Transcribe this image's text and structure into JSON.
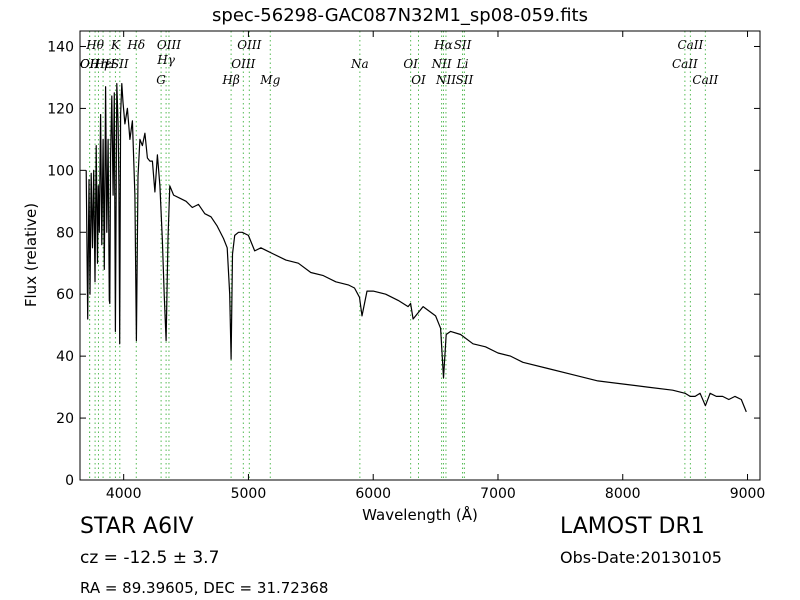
{
  "chart_data": {
    "type": "line",
    "title": "spec-56298-GAC087N32M1_sp08-059.fits",
    "xlabel": "Wavelength (Å)",
    "ylabel": "Flux (relative)",
    "xlim": [
      3650,
      9100
    ],
    "ylim": [
      0,
      145
    ],
    "xticks": [
      4000,
      5000,
      6000,
      7000,
      8000,
      9000
    ],
    "yticks": [
      0,
      20,
      40,
      60,
      80,
      100,
      120,
      140
    ],
    "grid": false,
    "colors": {
      "spectrum": "#000000",
      "lines": "#55bb55"
    },
    "series": [
      {
        "x": [
          3700,
          3712,
          3722,
          3730,
          3740,
          3750,
          3760,
          3770,
          3780,
          3790,
          3797,
          3805,
          3815,
          3825,
          3835,
          3845,
          3855,
          3865,
          3875,
          3885,
          3889,
          3895,
          3905,
          3915,
          3925,
          3934,
          3945,
          3955,
          3962,
          3968,
          3975,
          3985,
          3995,
          4010,
          4030,
          4050,
          4070,
          4090,
          4102,
          4115,
          4130,
          4150,
          4170,
          4190,
          4210,
          4230,
          4250,
          4270,
          4290,
          4310,
          4325,
          4340,
          4355,
          4370,
          4400,
          4450,
          4500,
          4550,
          4600,
          4650,
          4700,
          4750,
          4800,
          4830,
          4850,
          4861,
          4872,
          4890,
          4920,
          4950,
          5000,
          5050,
          5100,
          5150,
          5200,
          5300,
          5400,
          5500,
          5600,
          5700,
          5800,
          5850,
          5890,
          5910,
          5950,
          6000,
          6100,
          6200,
          6280,
          6300,
          6320,
          6400,
          6500,
          6540,
          6563,
          6585,
          6620,
          6700,
          6800,
          6900,
          7000,
          7100,
          7200,
          7400,
          7600,
          7800,
          8000,
          8200,
          8400,
          8500,
          8540,
          8580,
          8620,
          8662,
          8700,
          8750,
          8800,
          8850,
          8900,
          8950,
          8990
        ],
        "y": [
          100,
          52,
          97,
          60,
          99,
          75,
          100,
          64,
          108,
          70,
          95,
          80,
          118,
          76,
          110,
          68,
          127,
          80,
          110,
          58,
          57,
          105,
          124,
          92,
          125,
          48,
          128,
          115,
          95,
          44,
          118,
          128,
          122,
          115,
          120,
          110,
          116,
          92,
          45,
          98,
          110,
          108,
          112,
          104,
          103,
          103,
          93,
          105,
          95,
          78,
          60,
          45,
          78,
          95,
          92,
          91,
          90,
          88,
          89,
          86,
          85,
          82,
          78,
          75,
          60,
          39,
          73,
          79,
          80,
          80,
          79,
          74,
          75,
          74,
          73,
          71,
          70,
          67,
          66,
          64,
          63,
          62,
          59,
          53,
          61,
          61,
          60,
          58,
          56,
          57,
          52,
          56,
          53,
          49,
          33,
          47,
          48,
          47,
          44,
          43,
          41,
          40,
          38,
          36,
          34,
          32,
          31,
          30,
          29,
          28,
          27,
          27,
          28,
          24,
          28,
          27,
          27,
          26,
          27,
          26,
          22
        ]
      }
    ],
    "lines": [
      {
        "x": 3727,
        "label": "OII",
        "row": 1
      },
      {
        "x": 3727,
        "label": "OII",
        "row": 2
      },
      {
        "x": 3771,
        "label": "Hθ",
        "row": 0
      },
      {
        "x": 3798,
        "label": "Hη",
        "row": 2
      },
      {
        "x": 3835,
        "label": "Hε",
        "row": 1
      },
      {
        "x": 3890,
        "label": "H",
        "row": 2
      },
      {
        "x": 3934,
        "label": "K",
        "row": 0
      },
      {
        "x": 3969,
        "label": "SII",
        "row": 1
      },
      {
        "x": 4101,
        "label": "Hδ",
        "row": 0
      },
      {
        "x": 4300,
        "label": "G",
        "row": 3
      },
      {
        "x": 4340,
        "label": "Hγ",
        "row": 2
      },
      {
        "x": 4363,
        "label": "OIII",
        "row": 0
      },
      {
        "x": 4861,
        "label": "Hβ",
        "row": 3
      },
      {
        "x": 4959,
        "label": "OIII",
        "row": 2
      },
      {
        "x": 5007,
        "label": "OIII",
        "row": 0
      },
      {
        "x": 5175,
        "label": "Mg",
        "row": 3
      },
      {
        "x": 5893,
        "label": "Na",
        "row": 2
      },
      {
        "x": 6300,
        "label": "OI",
        "row": 1
      },
      {
        "x": 6363,
        "label": "OI",
        "row": 3
      },
      {
        "x": 6548,
        "label": "NII",
        "row": 2
      },
      {
        "x": 6563,
        "label": "Hα",
        "row": 0
      },
      {
        "x": 6583,
        "label": "NII",
        "row": 3
      },
      {
        "x": 6716,
        "label": "SII",
        "row": 0
      },
      {
        "x": 6716,
        "label": "Li",
        "row": 2
      },
      {
        "x": 6731,
        "label": "SII",
        "row": 3
      },
      {
        "x": 8498,
        "label": "CaII",
        "row": 2
      },
      {
        "x": 8542,
        "label": "CaII",
        "row": 0
      },
      {
        "x": 8662,
        "label": "CaII",
        "row": 3
      }
    ]
  },
  "info": {
    "object_class": "STAR   A6IV",
    "cz": "cz = -12.5 ± 3.7",
    "radec": "RA = 89.39605, DEC = 31.72368",
    "survey": "LAMOST DR1",
    "obs_date": "Obs-Date:20130105"
  }
}
